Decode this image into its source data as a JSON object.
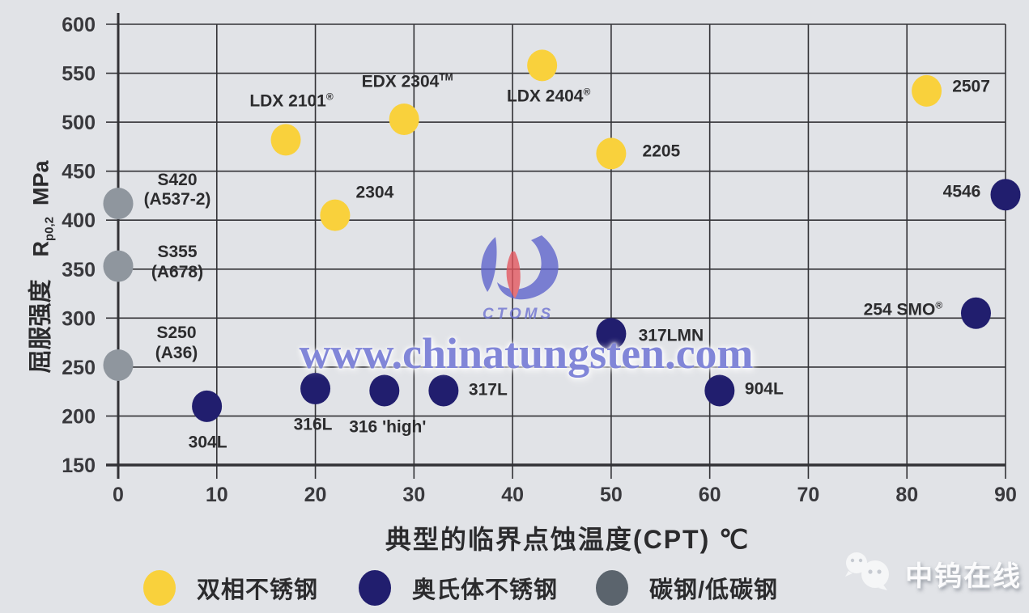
{
  "watermark": {
    "url_text": "www.chinatungsten.com",
    "logo_text": "CTOMS",
    "color": "#7c81d6"
  },
  "footer_logo": {
    "text": "中钨在线",
    "icon": "wechat-icon"
  },
  "colors": {
    "background": "#e1e3e7",
    "gridline": "#323236",
    "duplex": "#f9d13c",
    "austenitic": "#211e6e",
    "carbon_point": "#8f969e",
    "carbon_legend": "#5b646d"
  },
  "chart_data": {
    "type": "scatter",
    "title": "",
    "xlabel": "典型的临界点蚀温度(CPT) ℃",
    "ylabel": "屈服强度 Rp0,2 MPa",
    "ylabel_parts": {
      "cn": "屈服强度",
      "sym": "R",
      "sub": "p0,2",
      "unit": "MPa"
    },
    "xlim": [
      0,
      90
    ],
    "ylim": [
      150,
      600
    ],
    "xticks": [
      0,
      10,
      20,
      30,
      40,
      50,
      60,
      70,
      80,
      90
    ],
    "yticks": [
      150,
      200,
      250,
      300,
      350,
      400,
      450,
      500,
      550,
      600
    ],
    "grid": true,
    "legend_position": "bottom",
    "series": [
      {
        "name": "双相不锈钢",
        "color": "#f9d13c",
        "points": [
          {
            "label": "LDX 2101®",
            "x": 17,
            "y": 482,
            "dx": 7,
            "dy": -47
          },
          {
            "label": "2304",
            "x": 22,
            "y": 405,
            "dx": 49,
            "dy": -27
          },
          {
            "label": "EDX 2304™",
            "x": 29,
            "y": 503,
            "dx": 4,
            "dy": -45
          },
          {
            "label": "LDX 2404®",
            "x": 43,
            "y": 558,
            "dx": 8,
            "dy": 39
          },
          {
            "label": "2205",
            "x": 50,
            "y": 468,
            "dx": 62,
            "dy": -2
          },
          {
            "label": "2507",
            "x": 82,
            "y": 532,
            "dx": 55,
            "dy": -4
          }
        ]
      },
      {
        "name": "奥氏体不锈钢",
        "color": "#211e6e",
        "points": [
          {
            "label": "304L",
            "x": 9,
            "y": 210,
            "dx": 1,
            "dy": 46
          },
          {
            "label": "316L",
            "x": 20,
            "y": 228,
            "dx": -3,
            "dy": 45
          },
          {
            "label": "316 'high'",
            "x": 27,
            "y": 226,
            "dx": 4,
            "dy": 46
          },
          {
            "label": "317L",
            "x": 33,
            "y": 226,
            "dx": 55,
            "dy": 0
          },
          {
            "label": "317LMN",
            "x": 50,
            "y": 284,
            "dx": 74,
            "dy": 3
          },
          {
            "label": "904L",
            "x": 61,
            "y": 226,
            "dx": 55,
            "dy": -1
          },
          {
            "label": "254 SMO®",
            "x": 87,
            "y": 305,
            "dx": -90,
            "dy": -3
          },
          {
            "label": "4546",
            "x": 90,
            "y": 426,
            "dx": -54,
            "dy": -3
          }
        ]
      },
      {
        "name": "碳钢/低碳钢",
        "color": "#8f969e",
        "legend_color": "#5b646d",
        "points": [
          {
            "label": "S420\n(A537-2)",
            "x": 0,
            "y": 417,
            "dx": 73,
            "dy": -16
          },
          {
            "label": "S355\n(A678)",
            "x": 0,
            "y": 353,
            "dx": 73,
            "dy": -4
          },
          {
            "label": "S250\n(A36)",
            "x": 0,
            "y": 252,
            "dx": 72,
            "dy": -26
          }
        ]
      }
    ]
  }
}
